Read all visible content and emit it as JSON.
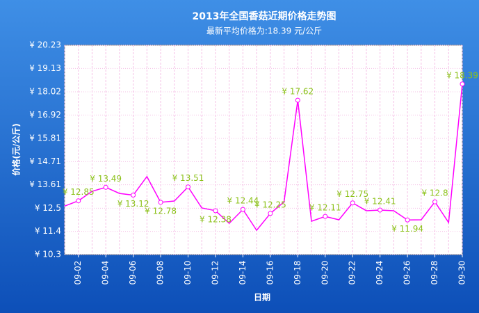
{
  "chart_data": {
    "type": "line",
    "title": "2013年全国香菇近期价格走势图",
    "subtitle": "最新平均价格为:18.39 元/公斤",
    "x_label": "日期",
    "y_label": "价格(元/公斤)",
    "categories": [
      null,
      "09-02",
      null,
      "09-04",
      null,
      "09-06",
      null,
      "09-08",
      null,
      "09-10",
      null,
      "09-12",
      null,
      "09-14",
      null,
      "09-16",
      null,
      "09-18",
      null,
      "09-20",
      null,
      "09-22",
      null,
      "09-24",
      null,
      "09-26",
      null,
      "09-28",
      null,
      "09-30"
    ],
    "series": [
      {
        "name": "价格",
        "color": "#ff00ff",
        "values": [
          12.6,
          12.85,
          13.3,
          13.49,
          13.2,
          13.12,
          14.0,
          12.78,
          12.84,
          13.51,
          12.51,
          12.38,
          11.78,
          12.44,
          11.45,
          12.25,
          12.8,
          17.62,
          11.88,
          12.11,
          11.95,
          12.75,
          12.38,
          12.41,
          12.38,
          11.94,
          11.95,
          12.8,
          11.82,
          18.39
        ],
        "value_labels": [
          null,
          "¥ 12.85",
          null,
          "¥ 13.49",
          null,
          "¥ 13.12",
          null,
          "¥ 12.78",
          null,
          "¥ 13.51",
          null,
          "¥ 12.38",
          null,
          "¥ 12.44",
          null,
          "¥ 12.25",
          null,
          "¥ 17.62",
          null,
          "¥ 12.11",
          null,
          "¥ 12.75",
          null,
          "¥ 12.41",
          null,
          "¥ 11.94",
          null,
          "¥ 12.8",
          null,
          "¥ 18.39"
        ],
        "label_color": "#8cc21a"
      }
    ],
    "ylim": [
      10.3,
      20.23
    ],
    "yticks": [
      {
        "value": 10.3,
        "label": "¥ 10.3"
      },
      {
        "value": 11.4,
        "label": "¥ 11.4"
      },
      {
        "value": 12.5,
        "label": "¥ 12.5"
      },
      {
        "value": 13.61,
        "label": "¥ 13.61"
      },
      {
        "value": 14.71,
        "label": "¥ 14.71"
      },
      {
        "value": 15.81,
        "label": "¥ 15.81"
      },
      {
        "value": 16.92,
        "label": "¥ 16.92"
      },
      {
        "value": 18.02,
        "label": "¥ 18.02"
      },
      {
        "value": 19.13,
        "label": "¥ 19.13"
      },
      {
        "value": 20.23,
        "label": "¥ 20.23"
      }
    ],
    "grid": true
  }
}
